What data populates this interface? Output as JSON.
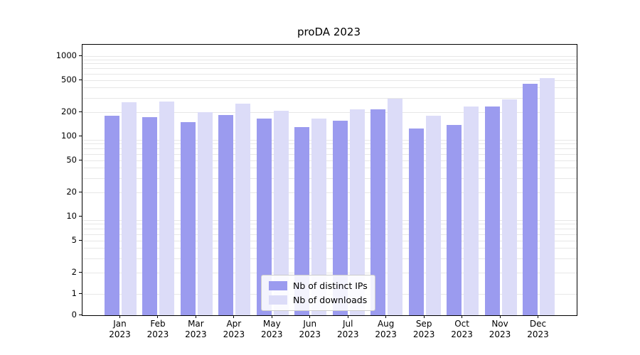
{
  "chart_data": {
    "type": "bar",
    "title": "proDA 2023",
    "categories": [
      "Jan",
      "Feb",
      "Mar",
      "Apr",
      "May",
      "Jun",
      "Jul",
      "Aug",
      "Sep",
      "Oct",
      "Nov",
      "Dec"
    ],
    "year_label": "2023",
    "series": [
      {
        "name": "Nb of distinct IPs",
        "color": "#9b9bef",
        "values": [
          180,
          172,
          150,
          185,
          165,
          130,
          158,
          215,
          124,
          138,
          235,
          450
        ]
      },
      {
        "name": "Nb of downloads",
        "color": "#dcdcf8",
        "values": [
          265,
          270,
          200,
          258,
          210,
          165,
          215,
          295,
          180,
          235,
          290,
          530
        ]
      }
    ],
    "y_ticks": [
      0,
      1,
      2,
      5,
      10,
      20,
      50,
      100,
      200,
      500,
      1000
    ],
    "y_scale": "symlog",
    "ylim": [
      0,
      1300
    ],
    "grid": true,
    "legend_position": "lower center"
  }
}
